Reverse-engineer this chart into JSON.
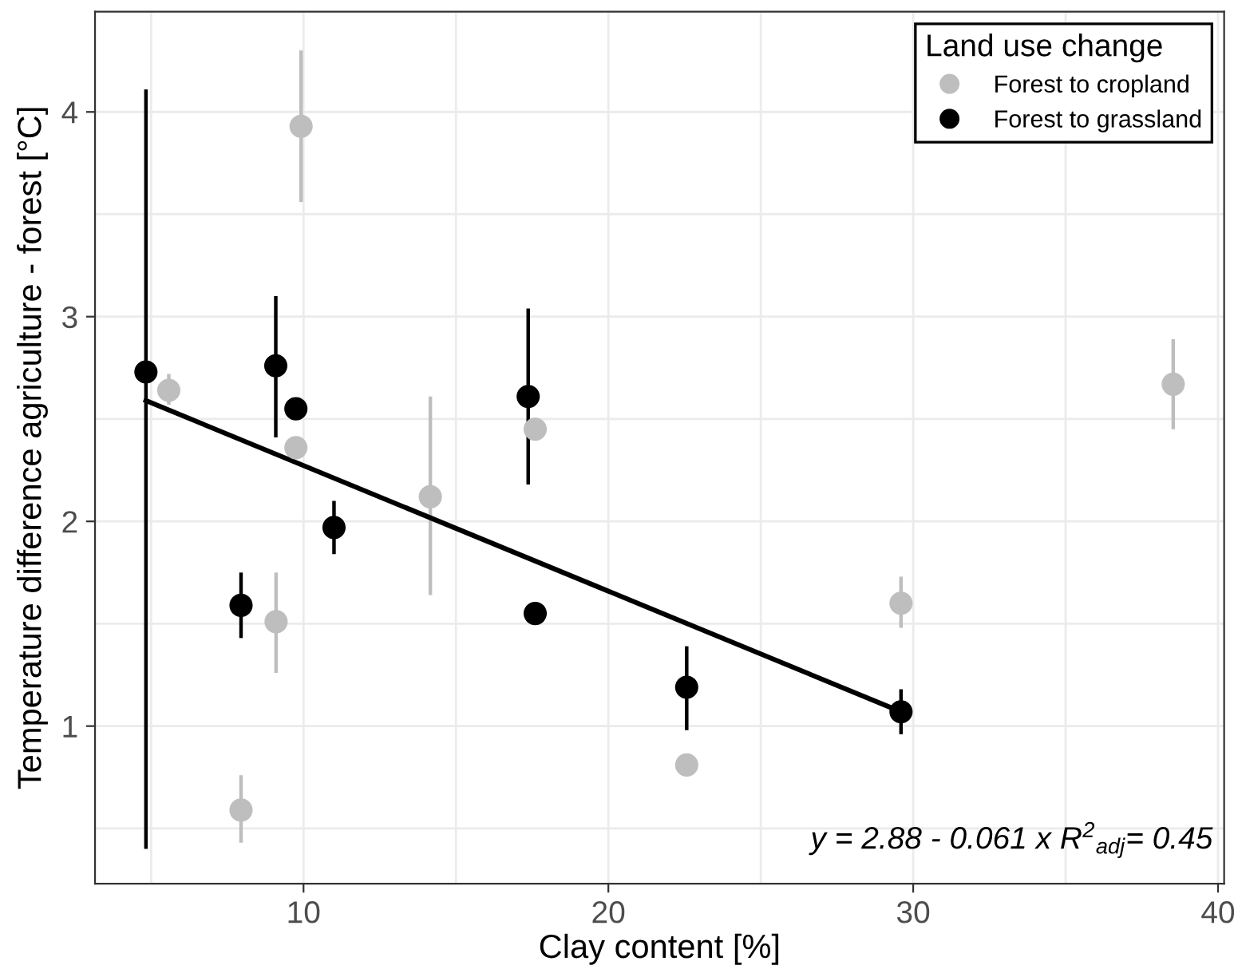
{
  "chart_data": {
    "type": "scatter",
    "xlabel": "Clay content [%]",
    "ylabel": "Temperature difference agriculture - forest [°C]",
    "legend_title": "Land use change",
    "legend": "top right",
    "grid": true,
    "xlim": [
      3.16,
      40.2
    ],
    "ylim": [
      0.23,
      4.49
    ],
    "xticks": [
      10,
      20,
      30,
      40
    ],
    "yticks": [
      1,
      2,
      3,
      4
    ],
    "series": [
      {
        "name": "Forest to cropland",
        "color": "#bebebe",
        "marker": "circle",
        "x": [
          5.58,
          9.92,
          9.75,
          14.16,
          17.6,
          9.1,
          7.95,
          22.57,
          29.6,
          38.53
        ],
        "values": [
          2.64,
          3.93,
          2.36,
          2.12,
          2.45,
          1.51,
          0.59,
          0.81,
          1.6,
          2.67
        ],
        "errors": [
          [
            2.57,
            2.72
          ],
          [
            3.56,
            4.3
          ],
          null,
          [
            1.64,
            2.61
          ],
          null,
          [
            1.26,
            1.75
          ],
          [
            0.43,
            0.76
          ],
          null,
          [
            1.48,
            1.73
          ],
          [
            2.45,
            2.89
          ]
        ]
      },
      {
        "name": "Forest to grassland",
        "color": "#000000",
        "marker": "circle",
        "x": [
          4.83,
          9.09,
          9.75,
          17.37,
          11.0,
          7.95,
          17.6,
          22.57,
          29.6
        ],
        "values": [
          2.73,
          2.76,
          2.55,
          2.61,
          1.97,
          1.59,
          1.55,
          1.19,
          1.07
        ],
        "errors": [
          [
            0.4,
            4.11
          ],
          [
            2.41,
            3.1
          ],
          null,
          [
            2.18,
            3.04
          ],
          [
            1.84,
            2.1
          ],
          [
            1.43,
            1.75
          ],
          null,
          [
            0.98,
            1.39
          ],
          [
            0.96,
            1.18
          ]
        ]
      },
      {
        "type": "line",
        "color": "#000000",
        "x": [
          4.83,
          29.6
        ],
        "values": [
          2.59,
          1.07
        ]
      }
    ],
    "annotations": [
      "y = 2.88 - 0.061 x R$^{2}$$_{adj}$= 0.45"
    ]
  }
}
